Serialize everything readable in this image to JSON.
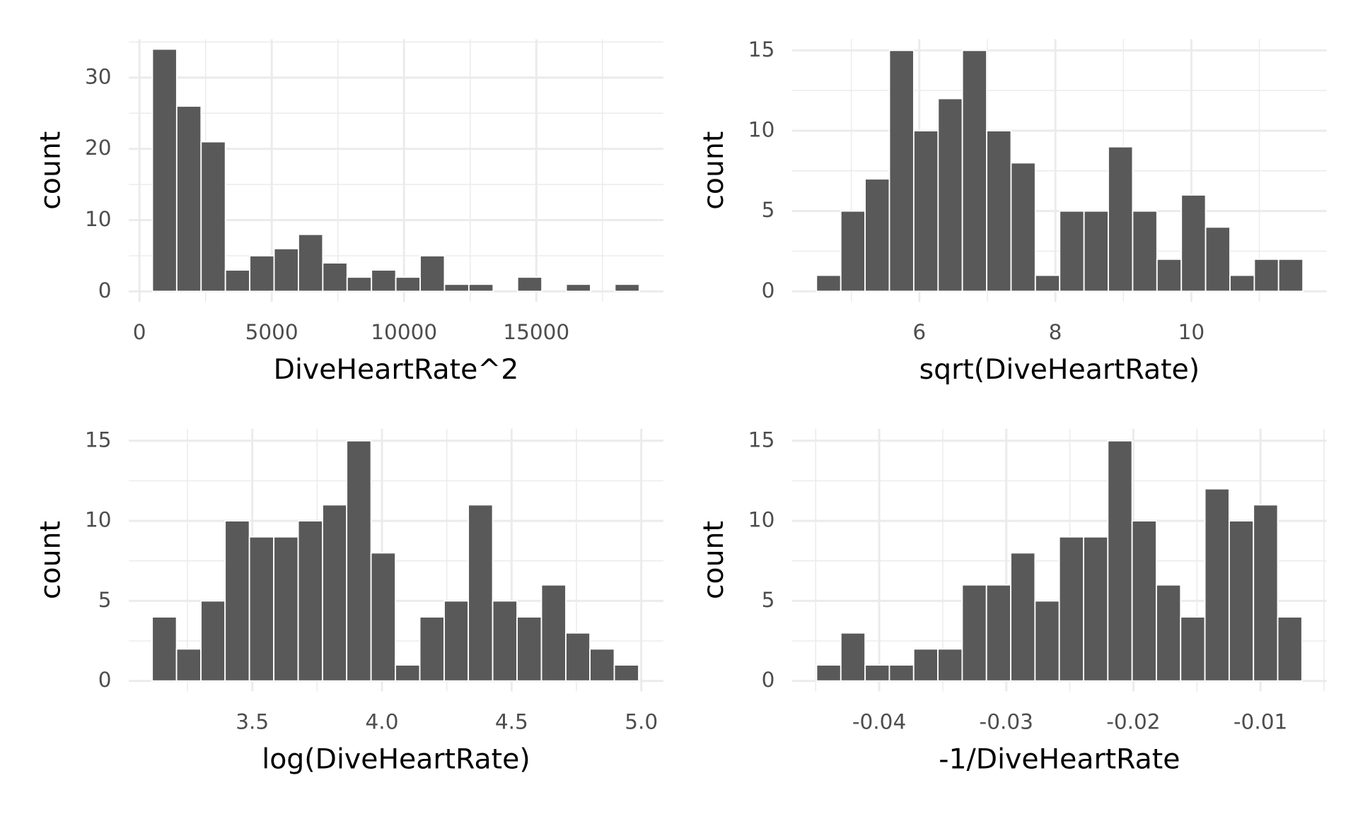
{
  "chart_data": [
    {
      "type": "histogram",
      "x_label": "DiveHeartRate^2",
      "y_label": "count",
      "color": "#595959",
      "grid": true,
      "bins": [
        490,
        1410,
        2330,
        3250,
        4170,
        5090,
        6010,
        6930,
        7850,
        8770,
        9690,
        10610,
        11530,
        12450,
        13370,
        14290,
        15210,
        16130,
        17050,
        17970,
        18890
      ],
      "values": [
        34,
        26,
        21,
        3,
        5,
        6,
        8,
        4,
        2,
        3,
        2,
        5,
        1,
        1,
        0,
        2,
        0,
        1,
        0,
        1
      ],
      "xlim": [
        -400,
        19800
      ],
      "ylim": [
        -1.46,
        35.4
      ],
      "xticks": [
        0,
        5000,
        10000,
        15000
      ],
      "yticks": [
        0,
        10,
        20,
        30
      ]
    },
    {
      "type": "histogram",
      "x_label": "sqrt(DiveHeartRate)",
      "y_label": "count",
      "color": "#595959",
      "grid": true,
      "bins": [
        4.487,
        4.845,
        5.202,
        5.56,
        5.918,
        6.276,
        6.633,
        6.991,
        7.349,
        7.706,
        8.064,
        8.422,
        8.779,
        9.137,
        9.495,
        9.853,
        10.21,
        10.568,
        10.926,
        11.283,
        11.641
      ],
      "values": [
        1,
        5,
        7,
        15,
        10,
        12,
        15,
        10,
        8,
        1,
        5,
        5,
        9,
        5,
        2,
        6,
        4,
        1,
        2,
        2
      ],
      "xlim": [
        4.13,
        11.99
      ],
      "ylim": [
        -0.65,
        15.7
      ],
      "xticks": [
        6,
        8,
        10
      ],
      "yticks": [
        0,
        5,
        10,
        15
      ]
    },
    {
      "type": "histogram",
      "x_label": "log(DiveHeartRate)",
      "y_label": "count",
      "color": "#595959",
      "grid": true,
      "bins": [
        3.114,
        3.208,
        3.302,
        3.395,
        3.489,
        3.583,
        3.677,
        3.771,
        3.864,
        3.958,
        4.052,
        4.146,
        4.24,
        4.333,
        4.427,
        4.521,
        4.615,
        4.709,
        4.802,
        4.896,
        4.99
      ],
      "values": [
        4,
        2,
        5,
        10,
        9,
        9,
        10,
        11,
        15,
        8,
        1,
        4,
        5,
        11,
        5,
        4,
        6,
        3,
        2,
        1
      ],
      "xlim": [
        3.024,
        5.085
      ],
      "ylim": [
        -0.65,
        15.75
      ],
      "xticks": [
        3.5,
        {
          "value": 4,
          "label": "4.0"
        },
        4.5,
        {
          "value": 5,
          "label": "5.0"
        }
      ],
      "yticks": [
        0,
        5,
        10,
        15
      ]
    },
    {
      "type": "histogram",
      "x_label": "-1/DiveHeartRate",
      "y_label": "count",
      "color": "#595959",
      "grid": true,
      "bins": [
        -0.04493,
        -0.04302,
        -0.04111,
        -0.0392,
        -0.03729,
        -0.03538,
        -0.03347,
        -0.03156,
        -0.02965,
        -0.02774,
        -0.02583,
        -0.02392,
        -0.02201,
        -0.0201,
        -0.01819,
        -0.01628,
        -0.01437,
        -0.01246,
        -0.01055,
        -0.00864,
        -0.00673
      ],
      "values": [
        1,
        3,
        1,
        1,
        2,
        2,
        6,
        6,
        8,
        5,
        9,
        9,
        15,
        10,
        6,
        4,
        12,
        10,
        11,
        4
      ],
      "xlim": [
        -0.04685,
        -0.00479
      ],
      "ylim": [
        -0.65,
        15.75
      ],
      "xticks": [
        -0.04,
        -0.03,
        -0.02,
        -0.01
      ],
      "yticks": [
        0,
        5,
        10,
        15
      ]
    }
  ]
}
